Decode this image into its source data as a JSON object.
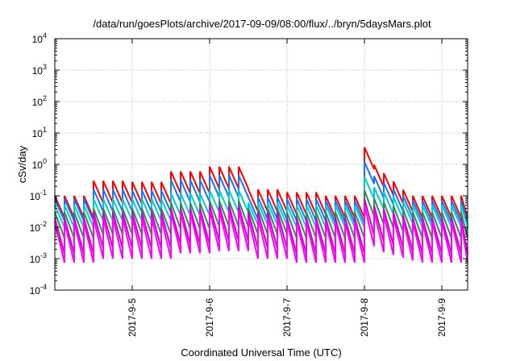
{
  "chart_data": {
    "type": "line",
    "title": "/data/run/goesPlots/archive/2017-09-09/08:00/flux/../bryn/5daysMars.plot",
    "xlabel": "Coordinated Universal Time (UTC)",
    "ylabel": "cSv/day",
    "yscale": "log",
    "ylim": [
      0.0001,
      10000
    ],
    "y_ticks": [
      {
        "base": "10",
        "exp": "-4",
        "value": 0.0001
      },
      {
        "base": "10",
        "exp": "-3",
        "value": 0.001
      },
      {
        "base": "10",
        "exp": "-2",
        "value": 0.01
      },
      {
        "base": "10",
        "exp": "-1",
        "value": 0.1
      },
      {
        "base": "10",
        "exp": "0",
        "value": 1
      },
      {
        "base": "10",
        "exp": "1",
        "value": 10
      },
      {
        "base": "10",
        "exp": "2",
        "value": 100
      },
      {
        "base": "10",
        "exp": "3",
        "value": 1000
      },
      {
        "base": "10",
        "exp": "4",
        "value": 10000
      }
    ],
    "xlim": [
      "2017-09-04T00:00",
      "2017-09-09T08:00"
    ],
    "x_ticks": [
      "2017-9-5",
      "2017-9-6",
      "2017-9-7",
      "2017-9-8",
      "2017-9-9"
    ],
    "grid": true,
    "legend": "none",
    "pulses_per_day": 8,
    "series": [
      {
        "color": "#ff0000",
        "daily_peaks": [
          0.1,
          0.3,
          0.28,
          0.6,
          0.85,
          0.16,
          0.13,
          0.1
        ],
        "flare_peak": 3.5,
        "trough_ratio": 0.2
      },
      {
        "color": "#1f6fff",
        "daily_peaks": [
          0.08,
          0.16,
          0.15,
          0.32,
          0.45,
          0.09,
          0.08,
          0.07
        ],
        "flare_peak": 1.2,
        "trough_ratio": 0.2
      },
      {
        "color": "#00cccc",
        "daily_peaks": [
          0.05,
          0.08,
          0.08,
          0.12,
          0.15,
          0.06,
          0.05,
          0.05
        ],
        "flare_peak": 0.4,
        "trough_ratio": 0.2
      },
      {
        "color": "#2e8b57",
        "daily_peaks": [
          0.03,
          0.04,
          0.04,
          0.06,
          0.07,
          0.04,
          0.03,
          0.03
        ],
        "flare_peak": 0.15,
        "trough_ratio": 0.15
      },
      {
        "color": "#cc00cc",
        "daily_peaks": [
          0.02,
          0.03,
          0.03,
          0.04,
          0.05,
          0.03,
          0.02,
          0.02
        ],
        "flare_peak": 0.08,
        "trough_ratio": 0.07
      },
      {
        "color": "#ff00ff",
        "daily_peaks": [
          0.015,
          0.02,
          0.02,
          0.03,
          0.035,
          0.02,
          0.015,
          0.015
        ],
        "flare_peak": 0.05,
        "trough_ratio": 0.05
      }
    ]
  }
}
